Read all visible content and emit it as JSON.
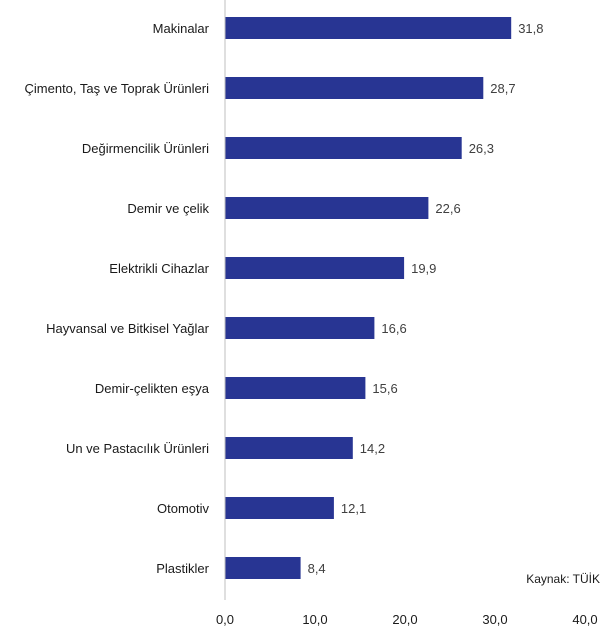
{
  "chart_data": {
    "type": "bar",
    "orientation": "horizontal",
    "categories": [
      "Makinalar",
      "Çimento, Taş ve Toprak Ürünleri",
      "Değirmencilik Ürünleri",
      "Demir ve çelik",
      "Elektrikli Cihazlar",
      "Hayvansal ve Bitkisel Yağlar",
      "Demir-çelikten eşya",
      "Un ve Pastacılık Ürünleri",
      "Otomotiv",
      "Plastikler"
    ],
    "values": [
      31.8,
      28.7,
      26.3,
      22.6,
      19.9,
      16.6,
      15.6,
      14.2,
      12.1,
      8.4
    ],
    "value_labels": [
      "31,8",
      "28,7",
      "26,3",
      "22,6",
      "19,9",
      "16,6",
      "15,6",
      "14,2",
      "12,1",
      "8,4"
    ],
    "x_ticks": [
      0,
      10,
      20,
      30,
      40
    ],
    "x_tick_labels": [
      "0,0",
      "10,0",
      "20,0",
      "30,0",
      "40,0"
    ],
    "xlim": [
      0,
      40
    ],
    "bar_color": "#283593",
    "axis_color": "#bfbfbf",
    "grid": false,
    "source_note": "Kaynak: TÜİK"
  }
}
